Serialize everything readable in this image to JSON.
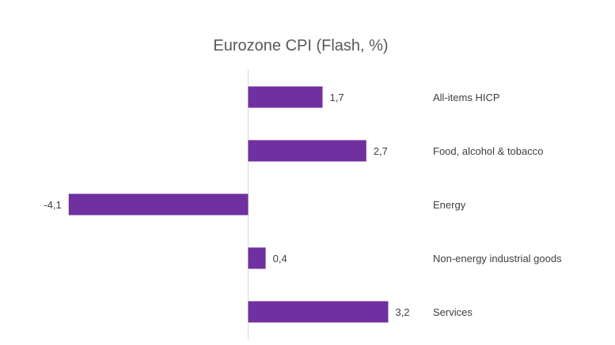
{
  "chart_data": {
    "type": "bar",
    "orientation": "horizontal",
    "title": "Eurozone CPI (Flash, %)",
    "categories": [
      "All-items HICP",
      "Food, alcohol & tobacco",
      "Energy",
      "Non-energy industrial goods",
      "Services"
    ],
    "values": [
      1.7,
      2.7,
      -4.1,
      0.4,
      3.2
    ],
    "data_labels": [
      "1,7",
      "2,7",
      "-4,1",
      "0,4",
      "3,2"
    ],
    "xlabel": "",
    "ylabel": "",
    "grid": false,
    "legend": "none",
    "bar_color": "#7030A0"
  }
}
